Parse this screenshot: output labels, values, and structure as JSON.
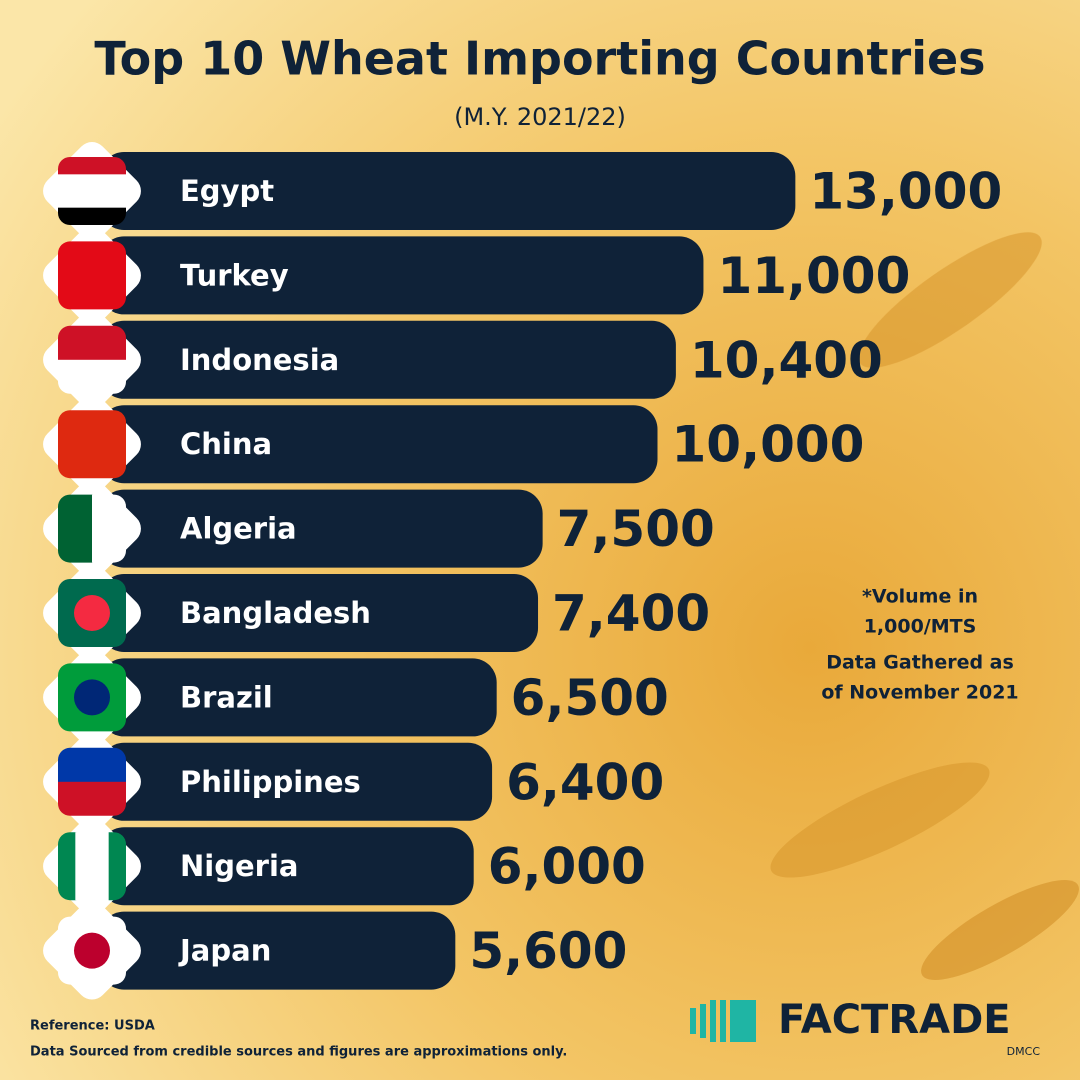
{
  "chart_data": {
    "type": "bar",
    "title": "Top 10 Wheat Importing Countries",
    "subtitle": "(M.Y. 2021/22)",
    "categories": [
      "Egypt",
      "Turkey",
      "Indonesia",
      "China",
      "Algeria",
      "Bangladesh",
      "Brazil",
      "Philippines",
      "Nigeria",
      "Japan"
    ],
    "values": [
      13000,
      11000,
      10400,
      10000,
      7500,
      7400,
      6500,
      6400,
      6000,
      5600
    ],
    "value_labels": [
      "13,000",
      "11,000",
      "10,400",
      "10,000",
      "7,500",
      "7,400",
      "6,500",
      "6,400",
      "6,000",
      "5,600"
    ],
    "color": "#0f2238",
    "notes": [
      "*Volume in",
      "1,000/MTS",
      "Data Gathered as",
      "of November 2021"
    ],
    "reference": "Reference: USDA",
    "disclaimer": "Data Sourced from credible sources and figures are approximations only.",
    "brand": "FACTRADE",
    "brand_sub": "DMCC"
  }
}
